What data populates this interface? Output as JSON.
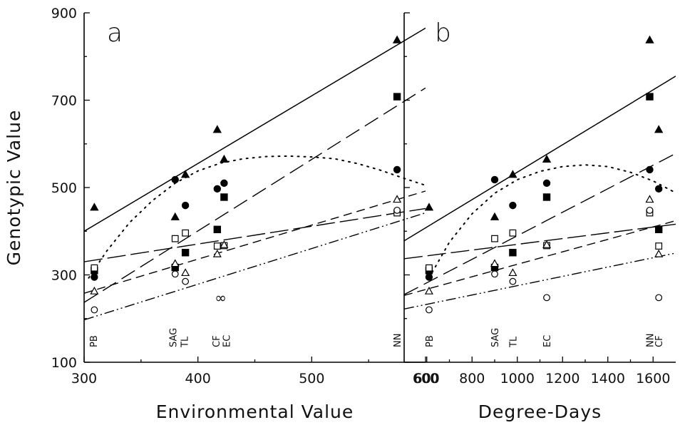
{
  "chart_data": [
    {
      "panel": "a",
      "type": "scatter",
      "xlabel": "Environmental Value",
      "ylabel": "Genotypic Value",
      "xlim": [
        300,
        600
      ],
      "ylim": [
        100,
        900
      ],
      "xticks": [
        300,
        400,
        500,
        600
      ],
      "yticks": [
        100,
        300,
        500,
        700,
        900
      ],
      "site_labels": [
        {
          "label": "PB",
          "x": 308
        },
        {
          "label": "SAG",
          "x": 378
        },
        {
          "label": "TL",
          "x": 388
        },
        {
          "label": "CF",
          "x": 416
        },
        {
          "label": "EC",
          "x": 425
        },
        {
          "label": "NN",
          "x": 575
        }
      ],
      "series": [
        {
          "marker": "filled-triangle",
          "line": "solid",
          "points": [
            [
              309,
              455
            ],
            [
              380,
              433
            ],
            [
              389,
              530
            ],
            [
              417,
              633
            ],
            [
              423,
              565
            ],
            [
              575,
              838
            ]
          ],
          "fit": [
            [
              300,
              400
            ],
            [
              600,
              865
            ]
          ]
        },
        {
          "marker": "filled-square",
          "line": "long-dash",
          "points": [
            [
              309,
              310
            ],
            [
              380,
              317
            ],
            [
              389,
              351
            ],
            [
              417,
              404
            ],
            [
              423,
              478
            ],
            [
              575,
              708
            ]
          ],
          "fit": [
            [
              300,
              237
            ],
            [
              600,
              728
            ]
          ]
        },
        {
          "marker": "filled-circle",
          "line": "dotted",
          "points": [
            [
              309,
              295
            ],
            [
              380,
              518
            ],
            [
              389,
              459
            ],
            [
              417,
              497
            ],
            [
              423,
              510
            ],
            [
              575,
              541
            ]
          ],
          "fit": [
            [
              304,
              293
            ],
            [
              320,
              355
            ],
            [
              340,
              420
            ],
            [
              360,
              470
            ],
            [
              380,
              510
            ],
            [
              400,
              538
            ],
            [
              420,
              556
            ],
            [
              440,
              566
            ],
            [
              460,
              571
            ],
            [
              480,
              572
            ],
            [
              500,
              570
            ],
            [
              520,
              566
            ],
            [
              540,
              555
            ],
            [
              560,
              540
            ],
            [
              580,
              522
            ],
            [
              600,
              505
            ]
          ]
        },
        {
          "marker": "open-square",
          "line": "dash-long",
          "points": [
            [
              309,
              316
            ],
            [
              380,
              383
            ],
            [
              389,
              396
            ],
            [
              417,
              366
            ],
            [
              423,
              367
            ],
            [
              575,
              442
            ]
          ],
          "fit": [
            [
              300,
              330
            ],
            [
              600,
              452
            ]
          ]
        },
        {
          "marker": "open-triangle",
          "line": "dashed",
          "points": [
            [
              309,
              263
            ],
            [
              380,
              326
            ],
            [
              389,
              305
            ],
            [
              417,
              348
            ],
            [
              423,
              369
            ],
            [
              575,
              473
            ]
          ],
          "fit": [
            [
              300,
              258
            ],
            [
              600,
              492
            ]
          ]
        },
        {
          "marker": "open-circle",
          "line": "dash-dot-dot",
          "points": [
            [
              309,
              220
            ],
            [
              380,
              302
            ],
            [
              389,
              285
            ],
            [
              575,
              448
            ]
          ],
          "fit": [
            [
              300,
              197
            ],
            [
              600,
              442
            ]
          ]
        }
      ],
      "annotations": [
        {
          "text": "∞",
          "x": 420,
          "y": 248
        }
      ]
    },
    {
      "panel": "b",
      "type": "scatter",
      "xlabel": "Degree-Days",
      "ylabel": "",
      "xlim": [
        500,
        1700
      ],
      "ylim": [
        100,
        900
      ],
      "xticks": [
        600,
        800,
        1000,
        1200,
        1400,
        1600
      ],
      "yticks": [
        100,
        300,
        500,
        700,
        900
      ],
      "site_labels": [
        {
          "label": "PB",
          "x": 610
        },
        {
          "label": "SAG",
          "x": 900
        },
        {
          "label": "TL",
          "x": 980
        },
        {
          "label": "EC",
          "x": 1130
        },
        {
          "label": "NN",
          "x": 1585
        },
        {
          "label": "CF",
          "x": 1625
        }
      ],
      "series": [
        {
          "marker": "filled-triangle",
          "line": "solid",
          "points": [
            [
              610,
              455
            ],
            [
              900,
              433
            ],
            [
              980,
              530
            ],
            [
              1130,
              565
            ],
            [
              1585,
              838
            ],
            [
              1625,
              633
            ]
          ],
          "fit": [
            [
              500,
              378
            ],
            [
              1700,
              755
            ]
          ]
        },
        {
          "marker": "filled-square",
          "line": "long-dash",
          "points": [
            [
              610,
              310
            ],
            [
              900,
              317
            ],
            [
              980,
              351
            ],
            [
              1130,
              478
            ],
            [
              1585,
              708
            ],
            [
              1625,
              404
            ]
          ],
          "fit": [
            [
              500,
              255
            ],
            [
              1700,
              578
            ]
          ]
        },
        {
          "marker": "filled-circle",
          "line": "dotted",
          "points": [
            [
              610,
              295
            ],
            [
              900,
              518
            ],
            [
              980,
              459
            ],
            [
              1130,
              510
            ],
            [
              1585,
              541
            ],
            [
              1625,
              497
            ]
          ],
          "fit": [
            [
              610,
              293
            ],
            [
              700,
              375
            ],
            [
              800,
              440
            ],
            [
              900,
              487
            ],
            [
              1000,
              518
            ],
            [
              1100,
              537
            ],
            [
              1200,
              548
            ],
            [
              1300,
              552
            ],
            [
              1400,
              548
            ],
            [
              1500,
              535
            ],
            [
              1600,
              515
            ],
            [
              1700,
              488
            ]
          ]
        },
        {
          "marker": "open-square",
          "line": "dash-long",
          "points": [
            [
              610,
              316
            ],
            [
              900,
              383
            ],
            [
              980,
              396
            ],
            [
              1130,
              367
            ],
            [
              1585,
              442
            ],
            [
              1625,
              366
            ]
          ],
          "fit": [
            [
              500,
              337
            ],
            [
              1700,
              416
            ]
          ]
        },
        {
          "marker": "open-triangle",
          "line": "dashed",
          "points": [
            [
              610,
              263
            ],
            [
              900,
              326
            ],
            [
              980,
              305
            ],
            [
              1130,
              369
            ],
            [
              1585,
              473
            ],
            [
              1625,
              348
            ]
          ],
          "fit": [
            [
              500,
              253
            ],
            [
              1700,
              424
            ]
          ]
        },
        {
          "marker": "open-circle",
          "line": "dash-dot-dot",
          "points": [
            [
              610,
              220
            ],
            [
              900,
              302
            ],
            [
              980,
              285
            ],
            [
              1130,
              248
            ],
            [
              1585,
              448
            ],
            [
              1625,
              248
            ]
          ],
          "fit": [
            [
              500,
              222
            ],
            [
              1700,
              350
            ]
          ]
        }
      ],
      "annotations": []
    }
  ]
}
